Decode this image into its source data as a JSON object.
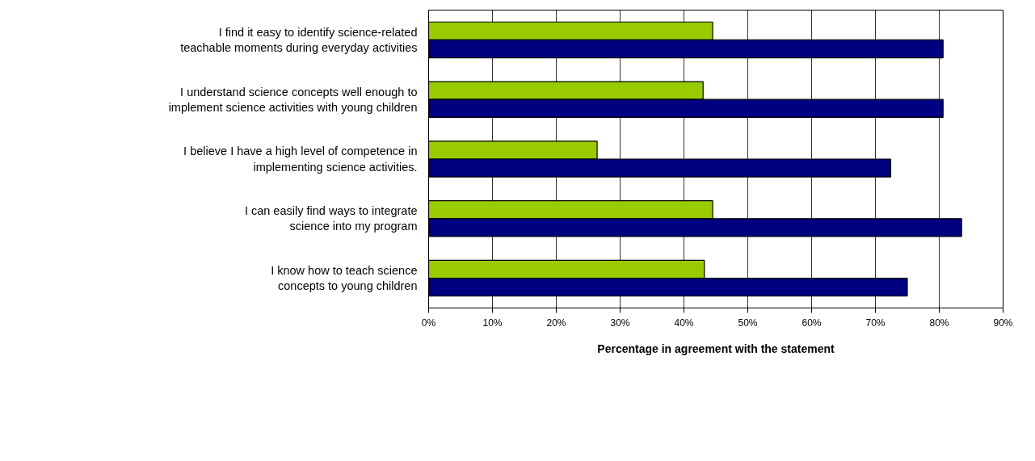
{
  "chart_data": {
    "type": "bar",
    "orientation": "horizontal",
    "categories": [
      "I find it easy to identify science-related\nteachable moments during everyday activities",
      "I understand science concepts well enough to\nimplement science activities with young children",
      "I believe I have a high level of competence in\nimplementing science activities.",
      "I can easily find ways to integrate\nscience into my program",
      "I know how to teach science\nconcepts to young children"
    ],
    "series": [
      {
        "color": "#99cc00",
        "values": [
          44.5,
          43.0,
          26.4,
          44.5,
          43.2
        ]
      },
      {
        "color": "#000080",
        "values": [
          80.6,
          80.6,
          72.4,
          83.5,
          75.0
        ]
      }
    ],
    "xlabel": "Percentage in agreement with the statement",
    "xlim": [
      0,
      90
    ],
    "xticks": [
      {
        "value": 0,
        "label": "0%"
      },
      {
        "value": 10,
        "label": "10%"
      },
      {
        "value": 20,
        "label": "20%"
      },
      {
        "value": 30,
        "label": "30%"
      },
      {
        "value": 40,
        "label": "40%"
      },
      {
        "value": 50,
        "label": "50%"
      },
      {
        "value": 60,
        "label": "60%"
      },
      {
        "value": 70,
        "label": "70%"
      },
      {
        "value": 80,
        "label": "80%"
      },
      {
        "value": 90,
        "label": "90%"
      }
    ],
    "grid": "x"
  }
}
